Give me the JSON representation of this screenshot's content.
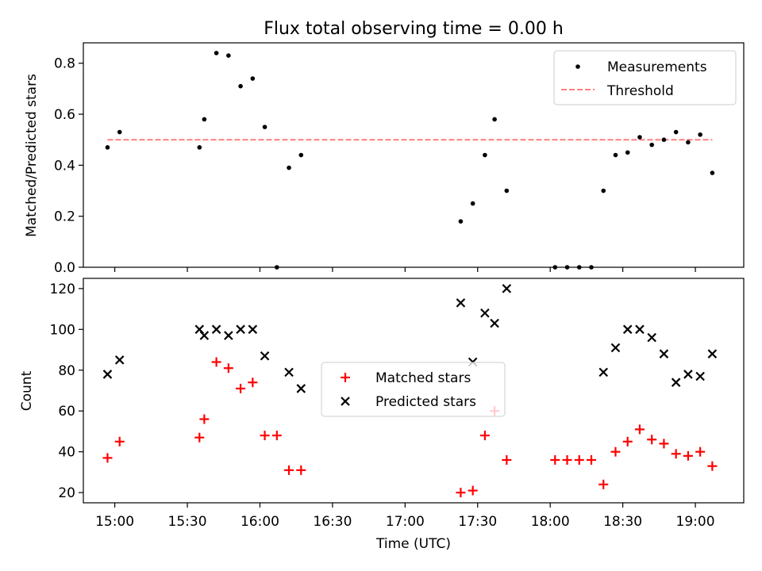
{
  "title": "Flux total observing time = 0.00 h",
  "colors": {
    "measurements": "#000000",
    "threshold": "#ff7f7f",
    "matched": "#ff0000",
    "predicted": "#000000"
  },
  "chart_data": [
    {
      "type": "scatter",
      "title": "Flux total observing time = 0.00 h",
      "xlabel": "",
      "ylabel": "Matched/Predicted stars",
      "ylim": [
        0,
        0.88
      ],
      "yticks": [
        0.0,
        0.2,
        0.4,
        0.6,
        0.8
      ],
      "ytick_labels": [
        "0.0",
        "0.2",
        "0.4",
        "0.6",
        "0.8"
      ],
      "legend_position": "top-right",
      "grid": false,
      "series": [
        {
          "name": "Measurements",
          "kind": "scatter",
          "marker": "dot",
          "x": [
            "14:57",
            "15:02",
            "15:35",
            "15:37",
            "15:42",
            "15:47",
            "15:52",
            "15:57",
            "16:02",
            "16:07",
            "16:12",
            "16:17",
            "17:23",
            "17:28",
            "17:33",
            "17:37",
            "17:42",
            "18:02",
            "18:07",
            "18:12",
            "18:17",
            "18:22",
            "18:27",
            "18:32",
            "18:37",
            "18:42",
            "18:47",
            "18:52",
            "18:57",
            "19:02",
            "19:07"
          ],
          "y": [
            0.47,
            0.53,
            0.47,
            0.58,
            0.84,
            0.83,
            0.71,
            0.74,
            0.55,
            0.0,
            0.39,
            0.44,
            0.18,
            0.25,
            0.44,
            0.58,
            0.3,
            0.0,
            0.0,
            0.0,
            0.0,
            0.3,
            0.44,
            0.45,
            0.51,
            0.48,
            0.5,
            0.53,
            0.49,
            0.52,
            0.37
          ]
        },
        {
          "name": "Threshold",
          "kind": "line",
          "style": "dashed",
          "x": [
            "14:57",
            "19:07"
          ],
          "y": [
            0.5,
            0.5
          ]
        }
      ]
    },
    {
      "type": "scatter",
      "xlabel": "Time (UTC)",
      "ylabel": "Count",
      "ylim": [
        15,
        125
      ],
      "yticks": [
        20,
        40,
        60,
        80,
        100,
        120
      ],
      "ytick_labels": [
        "20",
        "40",
        "60",
        "80",
        "100",
        "120"
      ],
      "xlim": [
        "14:47",
        "19:20"
      ],
      "xticks": [
        "15:00",
        "15:30",
        "16:00",
        "16:30",
        "17:00",
        "17:30",
        "18:00",
        "18:30",
        "19:00"
      ],
      "legend_position": "center",
      "grid": false,
      "series": [
        {
          "name": "Matched stars",
          "marker": "plus",
          "x": [
            "14:57",
            "15:02",
            "15:35",
            "15:37",
            "15:42",
            "15:47",
            "15:52",
            "15:57",
            "16:02",
            "16:07",
            "16:12",
            "16:17",
            "17:23",
            "17:28",
            "17:33",
            "17:37",
            "17:42",
            "18:02",
            "18:07",
            "18:12",
            "18:17",
            "18:22",
            "18:27",
            "18:32",
            "18:37",
            "18:42",
            "18:47",
            "18:52",
            "18:57",
            "19:02",
            "19:07"
          ],
          "y": [
            37,
            45,
            47,
            56,
            84,
            81,
            71,
            74,
            48,
            48,
            31,
            31,
            20,
            21,
            48,
            60,
            36,
            36,
            36,
            36,
            36,
            24,
            40,
            45,
            51,
            46,
            44,
            39,
            38,
            40,
            33
          ]
        },
        {
          "name": "Predicted stars",
          "marker": "x",
          "x": [
            "14:57",
            "15:02",
            "15:35",
            "15:37",
            "15:42",
            "15:47",
            "15:52",
            "15:57",
            "16:02",
            "16:12",
            "16:17",
            "17:23",
            "17:28",
            "17:33",
            "17:37",
            "17:42",
            "18:22",
            "18:27",
            "18:32",
            "18:37",
            "18:42",
            "18:47",
            "18:52",
            "18:57",
            "19:02",
            "19:07"
          ],
          "y": [
            78,
            85,
            100,
            97,
            100,
            97,
            100,
            100,
            87,
            79,
            71,
            113,
            84,
            108,
            103,
            120,
            79,
            91,
            100,
            100,
            96,
            88,
            74,
            78,
            77,
            88
          ]
        }
      ]
    }
  ]
}
